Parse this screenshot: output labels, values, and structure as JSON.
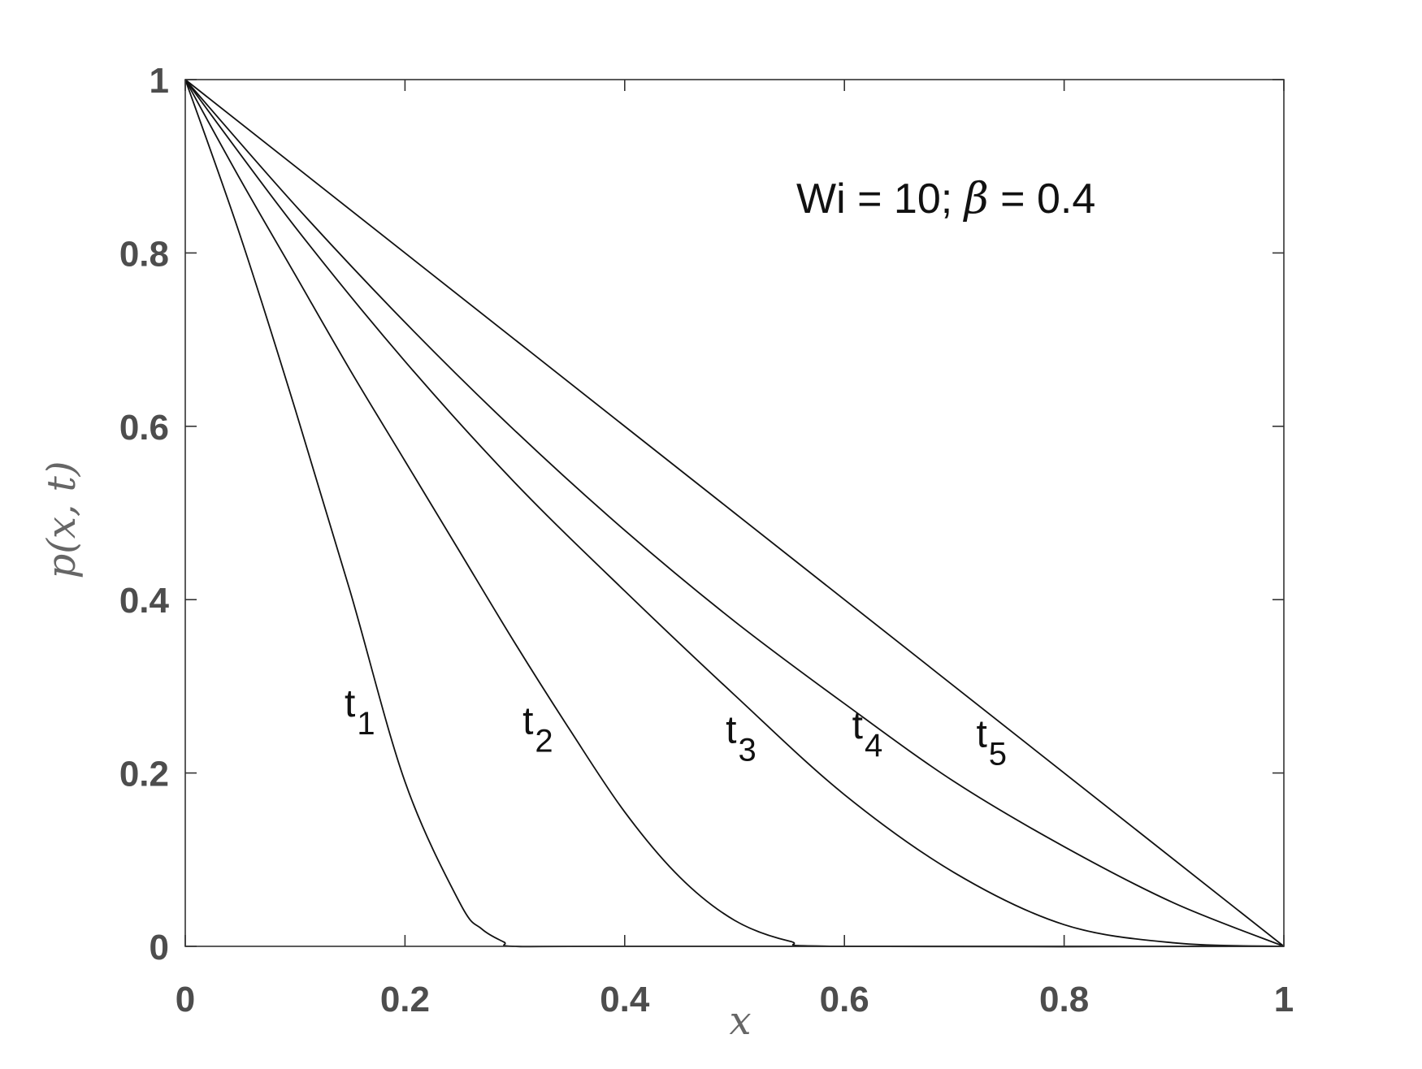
{
  "chart_data": {
    "type": "line",
    "xlabel": "x",
    "ylabel": "p(x, t)",
    "xlim": [
      0,
      1
    ],
    "ylim": [
      0,
      1
    ],
    "xticks": [
      "0",
      "0.2",
      "0.4",
      "0.6",
      "0.8",
      "1"
    ],
    "yticks": [
      "0",
      "0.2",
      "0.4",
      "0.6",
      "0.8",
      "1"
    ],
    "annotation": {
      "prefix": "Wi = 10; ",
      "greek": "β",
      "suffix": " = 0.4"
    },
    "series": [
      {
        "name": "t",
        "sub": "1",
        "x": [
          0,
          0.05,
          0.1,
          0.15,
          0.2,
          0.25,
          0.27,
          0.29,
          0.3,
          0.4,
          1
        ],
        "y": [
          1,
          0.82,
          0.62,
          0.41,
          0.19,
          0.05,
          0.02,
          0.005,
          0,
          0,
          0
        ]
      },
      {
        "name": "t",
        "sub": "2",
        "x": [
          0,
          0.05,
          0.1,
          0.15,
          0.2,
          0.25,
          0.3,
          0.35,
          0.4,
          0.45,
          0.5,
          0.55,
          0.6,
          1
        ],
        "y": [
          1,
          0.885,
          0.775,
          0.665,
          0.56,
          0.455,
          0.35,
          0.25,
          0.155,
          0.08,
          0.03,
          0.006,
          0,
          0
        ]
      },
      {
        "name": "t",
        "sub": "3",
        "x": [
          0,
          0.1,
          0.2,
          0.3,
          0.4,
          0.5,
          0.6,
          0.7,
          0.8,
          0.9,
          1
        ],
        "y": [
          1,
          0.83,
          0.675,
          0.535,
          0.41,
          0.29,
          0.175,
          0.085,
          0.025,
          0.004,
          0
        ]
      },
      {
        "name": "t",
        "sub": "4",
        "x": [
          0,
          0.1,
          0.2,
          0.3,
          0.4,
          0.5,
          0.6,
          0.7,
          0.8,
          0.9,
          1
        ],
        "y": [
          1,
          0.855,
          0.72,
          0.595,
          0.48,
          0.375,
          0.28,
          0.19,
          0.115,
          0.05,
          0
        ]
      },
      {
        "name": "t",
        "sub": "5",
        "x": [
          0,
          0.5,
          1
        ],
        "y": [
          1,
          0.5,
          0
        ]
      }
    ],
    "labels": [
      {
        "text": "t",
        "sub": "1",
        "x": 0.145,
        "y": 0.265
      },
      {
        "text": "t",
        "sub": "2",
        "x": 0.307,
        "y": 0.245
      },
      {
        "text": "t",
        "sub": "3",
        "x": 0.492,
        "y": 0.235
      },
      {
        "text": "t",
        "sub": "4",
        "x": 0.607,
        "y": 0.24
      },
      {
        "text": "t",
        "sub": "5",
        "x": 0.72,
        "y": 0.23
      }
    ],
    "grid": false,
    "line_color": "#111111"
  }
}
